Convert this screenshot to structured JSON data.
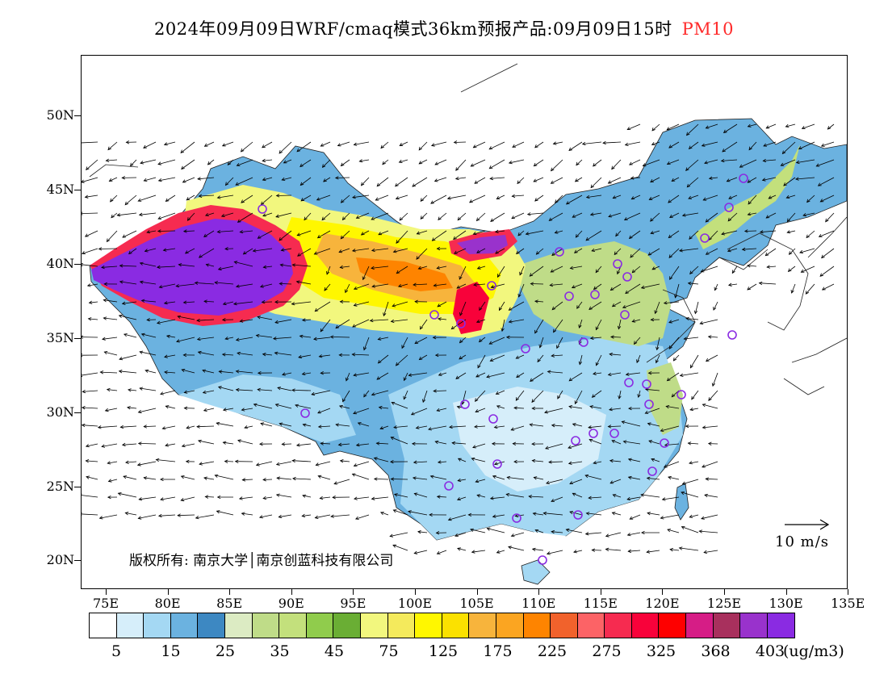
{
  "title": "2024年09月09日WRF/cmaq模式36km预报产品:09月09日15时",
  "species": "PM10",
  "species_color": "#ff2a2a",
  "lat_labels": [
    "50N",
    "45N",
    "40N",
    "35N",
    "30N",
    "25N",
    "20N"
  ],
  "lon_labels": [
    "75E",
    "80E",
    "85E",
    "90E",
    "95E",
    "100E",
    "105E",
    "110E",
    "115E",
    "120E",
    "125E",
    "130E",
    "135E"
  ],
  "copyright": "版权所有: 南京大学│南京创蓝科技有限公司",
  "scale_label": "10 m/s",
  "legend": {
    "colors": [
      "#ffffff",
      "#d6eefa",
      "#a4d8f3",
      "#6bb2e0",
      "#3d88c2",
      "#dcebc3",
      "#bfdc88",
      "#c3e07c",
      "#90cc4c",
      "#6aae34",
      "#f2f77e",
      "#f4ea5c",
      "#fff700",
      "#fbe100",
      "#f7b43c",
      "#fba521",
      "#fe8400",
      "#f1622c",
      "#fc6366",
      "#f62b50",
      "#f8023a",
      "#fe0000",
      "#d61d86",
      "#a8305d",
      "#9932cc",
      "#8a2be2"
    ],
    "labels": [
      "5",
      "15",
      "25",
      "35",
      "45",
      "75",
      "125",
      "175",
      "225",
      "275",
      "325",
      "368",
      "403"
    ],
    "unit": "(ug/m3)"
  },
  "icons": {
    "city_marker": "circle-icon",
    "wind": "wind-arrow-icon"
  }
}
